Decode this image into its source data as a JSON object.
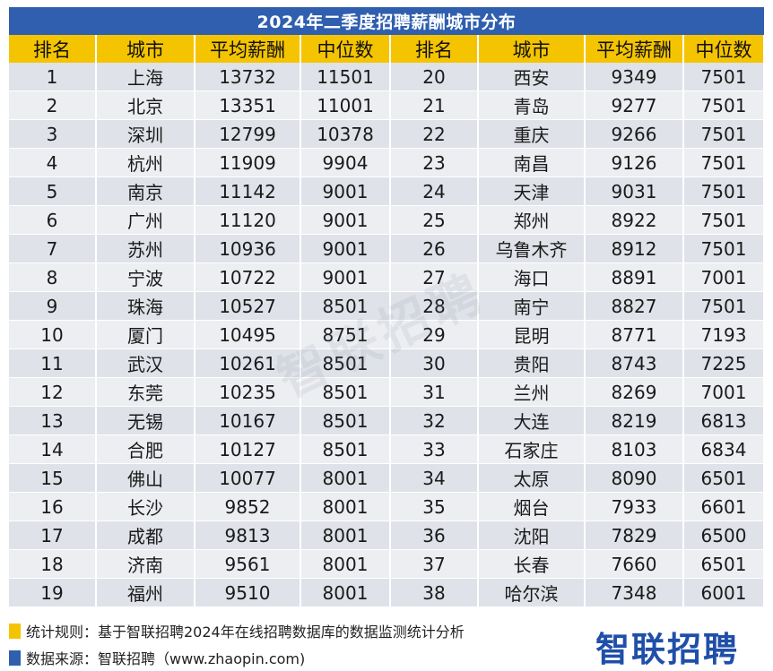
{
  "title": "2024年二季度招聘薪酬城市分布",
  "headers": [
    "排名",
    "城市",
    "平均薪酬",
    "中位数",
    "排名",
    "城市",
    "平均薪酬",
    "中位数"
  ],
  "left_rows": [
    {
      "rank": "1",
      "city": "上海",
      "avg": "13732",
      "median": "11501"
    },
    {
      "rank": "2",
      "city": "北京",
      "avg": "13351",
      "median": "11001"
    },
    {
      "rank": "3",
      "city": "深圳",
      "avg": "12799",
      "median": "10378"
    },
    {
      "rank": "4",
      "city": "杭州",
      "avg": "11909",
      "median": "9904"
    },
    {
      "rank": "5",
      "city": "南京",
      "avg": "11142",
      "median": "9001"
    },
    {
      "rank": "6",
      "city": "广州",
      "avg": "11120",
      "median": "9001"
    },
    {
      "rank": "7",
      "city": "苏州",
      "avg": "10936",
      "median": "9001"
    },
    {
      "rank": "8",
      "city": "宁波",
      "avg": "10722",
      "median": "9001"
    },
    {
      "rank": "9",
      "city": "珠海",
      "avg": "10527",
      "median": "8501"
    },
    {
      "rank": "10",
      "city": "厦门",
      "avg": "10495",
      "median": "8751"
    },
    {
      "rank": "11",
      "city": "武汉",
      "avg": "10261",
      "median": "8501"
    },
    {
      "rank": "12",
      "city": "东莞",
      "avg": "10235",
      "median": "8501"
    },
    {
      "rank": "13",
      "city": "无锡",
      "avg": "10167",
      "median": "8501"
    },
    {
      "rank": "14",
      "city": "合肥",
      "avg": "10127",
      "median": "8501"
    },
    {
      "rank": "15",
      "city": "佛山",
      "avg": "10077",
      "median": "8001"
    },
    {
      "rank": "16",
      "city": "长沙",
      "avg": "9852",
      "median": "8001"
    },
    {
      "rank": "17",
      "city": "成都",
      "avg": "9813",
      "median": "8001"
    },
    {
      "rank": "18",
      "city": "济南",
      "avg": "9561",
      "median": "8001"
    },
    {
      "rank": "19",
      "city": "福州",
      "avg": "9510",
      "median": "8001"
    }
  ],
  "right_rows": [
    {
      "rank": "20",
      "city": "西安",
      "avg": "9349",
      "median": "7501"
    },
    {
      "rank": "21",
      "city": "青岛",
      "avg": "9277",
      "median": "7501"
    },
    {
      "rank": "22",
      "city": "重庆",
      "avg": "9266",
      "median": "7501"
    },
    {
      "rank": "23",
      "city": "南昌",
      "avg": "9126",
      "median": "7501"
    },
    {
      "rank": "24",
      "city": "天津",
      "avg": "9031",
      "median": "7501"
    },
    {
      "rank": "25",
      "city": "郑州",
      "avg": "8922",
      "median": "7501"
    },
    {
      "rank": "26",
      "city": "乌鲁木齐",
      "avg": "8912",
      "median": "7501"
    },
    {
      "rank": "27",
      "city": "海口",
      "avg": "8891",
      "median": "7001"
    },
    {
      "rank": "28",
      "city": "南宁",
      "avg": "8827",
      "median": "7501"
    },
    {
      "rank": "29",
      "city": "昆明",
      "avg": "8771",
      "median": "7193"
    },
    {
      "rank": "30",
      "city": "贵阳",
      "avg": "8743",
      "median": "7225"
    },
    {
      "rank": "31",
      "city": "兰州",
      "avg": "8269",
      "median": "7001"
    },
    {
      "rank": "32",
      "city": "大连",
      "avg": "8219",
      "median": "6813"
    },
    {
      "rank": "33",
      "city": "石家庄",
      "avg": "8103",
      "median": "6834"
    },
    {
      "rank": "34",
      "city": "太原",
      "avg": "8090",
      "median": "6501"
    },
    {
      "rank": "35",
      "city": "烟台",
      "avg": "7933",
      "median": "6601"
    },
    {
      "rank": "36",
      "city": "沈阳",
      "avg": "7829",
      "median": "6500"
    },
    {
      "rank": "37",
      "city": "长春",
      "avg": "7660",
      "median": "6501"
    },
    {
      "rank": "38",
      "city": "哈尔滨",
      "avg": "7348",
      "median": "6001"
    }
  ],
  "footer": {
    "rule": "统计规则：基于智联招聘2024年在线招聘数据库的数据监测统计分析",
    "source": "数据来源：智联招聘（www.zhaopin.com)"
  },
  "logo_text": "智联招聘",
  "watermark_text": "智联招聘",
  "colors": {
    "title_bg": "#2f5fae",
    "header_bg": "#f5c400",
    "row_odd": "#dfe2e8",
    "row_even": "#eceef2"
  }
}
